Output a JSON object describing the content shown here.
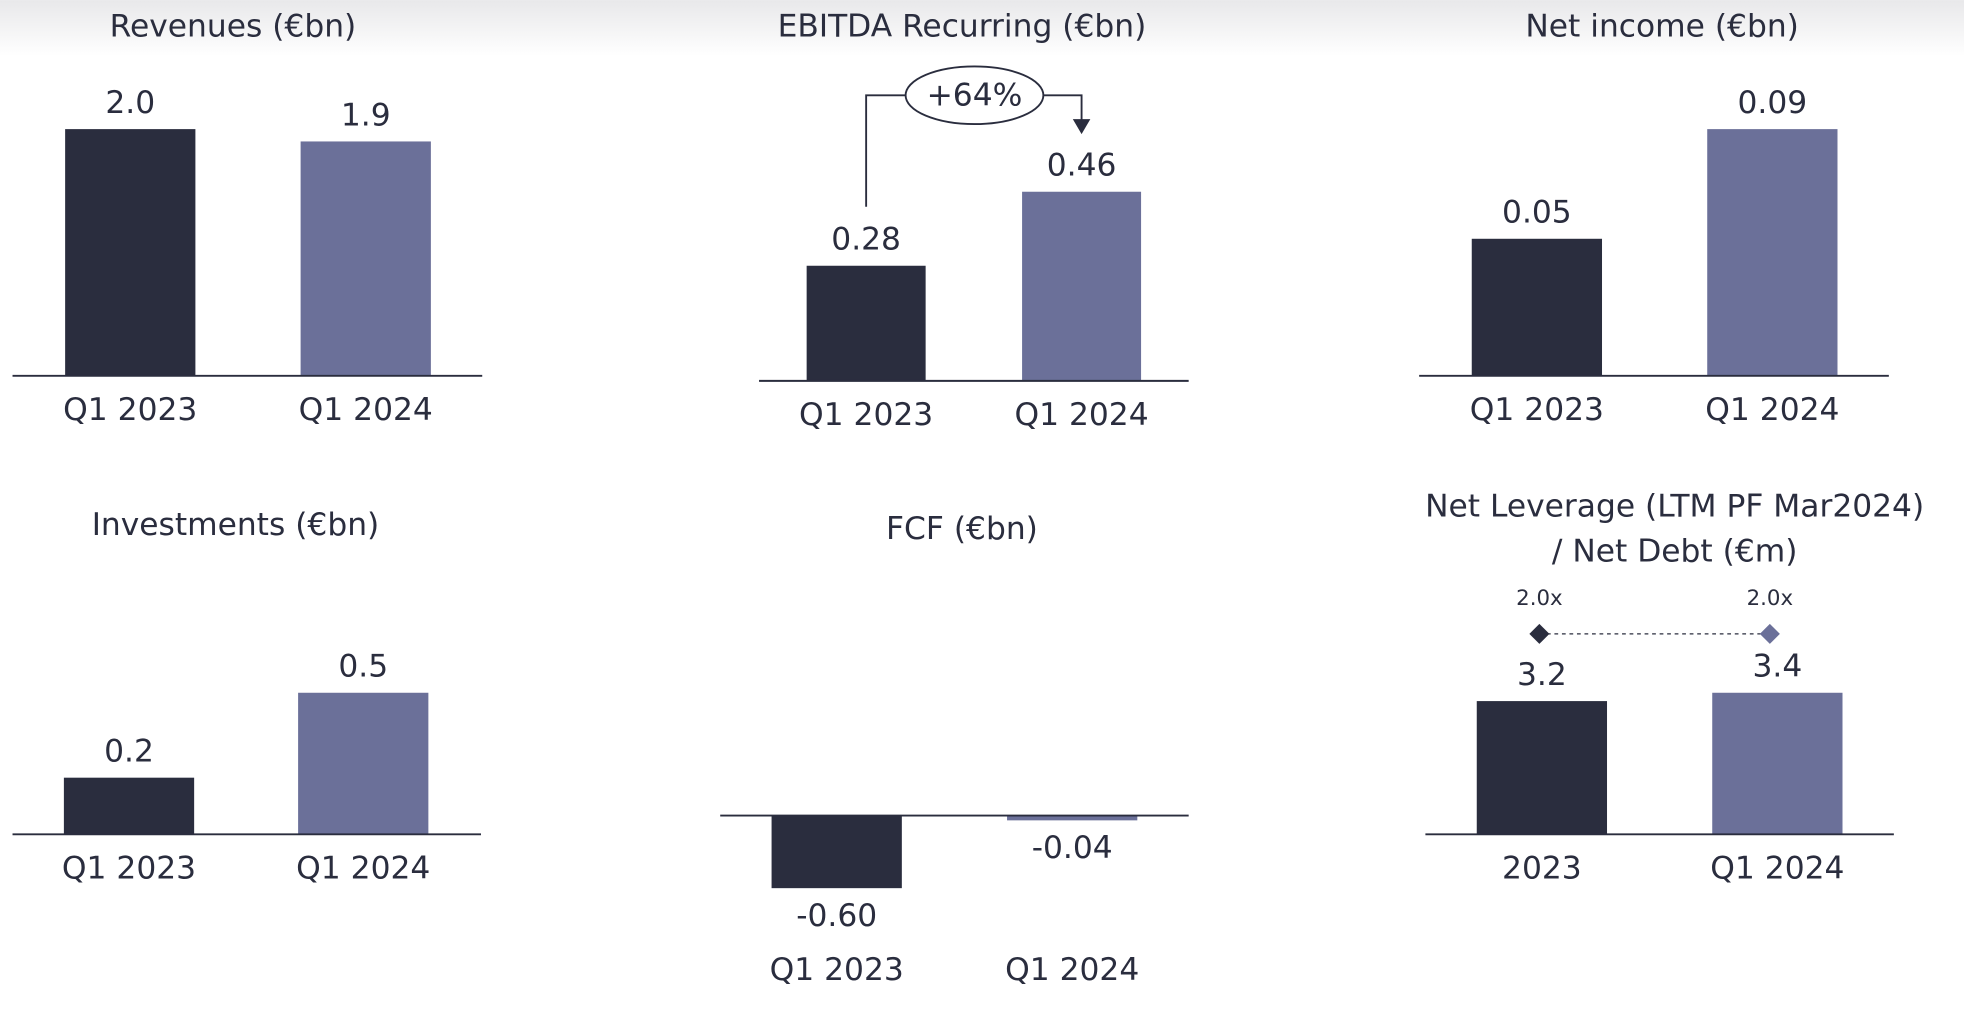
{
  "chart_data": [
    {
      "type": "bar",
      "title": "Revenues (€bn)",
      "categories": [
        "Q1 2023",
        "Q1 2024"
      ],
      "values": [
        2.0,
        1.9
      ],
      "value_labels": [
        "2.0",
        "1.9"
      ],
      "colors": [
        "#2a2d3e",
        "#6b7099"
      ]
    },
    {
      "type": "bar",
      "title": "EBITDA Recurring (€bn)",
      "categories": [
        "Q1 2023",
        "Q1 2024"
      ],
      "values": [
        0.28,
        0.46
      ],
      "colors": [
        "#2a2d3e",
        "#6b7099"
      ],
      "annotation": "+64%"
    },
    {
      "type": "bar",
      "title": "Net income (€bn)",
      "categories": [
        "Q1 2023",
        "Q1 2024"
      ],
      "values": [
        0.05,
        0.09
      ],
      "colors": [
        "#2a2d3e",
        "#6b7099"
      ]
    },
    {
      "type": "bar",
      "title": "Investments (€bn)",
      "categories": [
        "Q1 2023",
        "Q1 2024"
      ],
      "values": [
        0.2,
        0.5
      ],
      "colors": [
        "#2a2d3e",
        "#6b7099"
      ]
    },
    {
      "type": "bar",
      "title": "FCF (€bn)",
      "categories": [
        "Q1 2023",
        "Q1 2024"
      ],
      "values": [
        -0.6,
        -0.04
      ],
      "value_labels": [
        "-0.60",
        "-0.04"
      ],
      "colors": [
        "#2a2d3e",
        "#6b7099"
      ]
    },
    {
      "type": "bar",
      "title": [
        "Net Leverage (LTM PF Mar2024)",
        "/ Net Debt (€m)"
      ],
      "categories": [
        "2023",
        "Q1 2024"
      ],
      "series": [
        {
          "name": "Net Debt",
          "values": [
            3.2,
            3.4
          ],
          "colors": [
            "#2a2d3e",
            "#6b7099"
          ]
        },
        {
          "name": "Net Leverage",
          "values": [
            2.0,
            2.0
          ],
          "value_labels": [
            "2.0x",
            "2.0x"
          ],
          "colors": [
            "#2a2d3e",
            "#6b7099"
          ]
        }
      ]
    }
  ]
}
